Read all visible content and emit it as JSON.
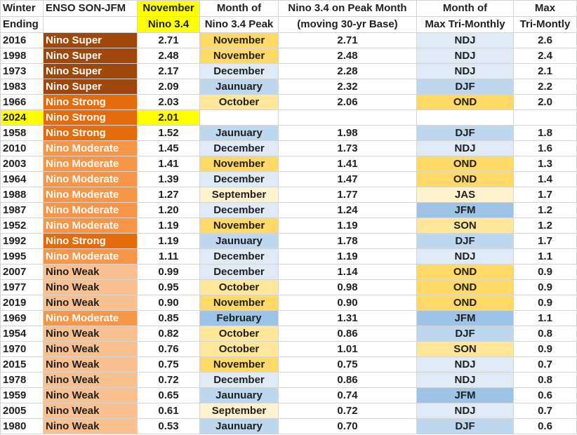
{
  "headers": [
    [
      "Winter",
      "Ending"
    ],
    [
      "ENSO SON-JFM",
      ""
    ],
    [
      "November",
      "Nino 3.4"
    ],
    [
      "Month of",
      "Nino 3.4 Peak"
    ],
    [
      "Nino 3.4 on Peak Month",
      "(moving 30-yr Base)"
    ],
    [
      "Month of",
      "Max Tri-Monthly"
    ],
    [
      "Max",
      "Tri-Montly"
    ]
  ],
  "colors": {
    "highlight": "#ffff00",
    "nino_super": "#a0480c",
    "nino_strong": "#e46c0a",
    "nino_moderate": "#f79646",
    "nino_weak": "#fac090",
    "blue_light": "#deebf7",
    "blue_mid": "#bdd7ee",
    "blue_dark": "#9dc3e6",
    "gold": "#ffd966",
    "gold_light": "#ffe699",
    "cream": "#fff2cc"
  },
  "rows": [
    {
      "year": "2016",
      "enso": "Nino Super",
      "nov": "2.71",
      "peak_month": "November",
      "peak_val": "2.71",
      "tri_month": "NDJ",
      "tri_max": "2.6"
    },
    {
      "year": "1998",
      "enso": "Nino Super",
      "nov": "2.48",
      "peak_month": "November",
      "peak_val": "2.48",
      "tri_month": "NDJ",
      "tri_max": "2.4"
    },
    {
      "year": "1973",
      "enso": "Nino Super",
      "nov": "2.17",
      "peak_month": "December",
      "peak_val": "2.28",
      "tri_month": "NDJ",
      "tri_max": "2.1"
    },
    {
      "year": "1983",
      "enso": "Nino Super",
      "nov": "2.09",
      "peak_month": "Jaunuary",
      "peak_val": "2.32",
      "tri_month": "DJF",
      "tri_max": "2.2"
    },
    {
      "year": "1966",
      "enso": "Nino Strong",
      "nov": "2.03",
      "peak_month": "October",
      "peak_val": "2.06",
      "tri_month": "OND",
      "tri_max": "2.0"
    },
    {
      "year": "2024",
      "enso": "Nino Strong",
      "nov": "2.01",
      "peak_month": "",
      "peak_val": "",
      "tri_month": "",
      "tri_max": ""
    },
    {
      "year": "1958",
      "enso": "Nino Strong",
      "nov": "1.52",
      "peak_month": "Jaunuary",
      "peak_val": "1.98",
      "tri_month": "DJF",
      "tri_max": "1.8"
    },
    {
      "year": "2010",
      "enso": "Nino Moderate",
      "nov": "1.45",
      "peak_month": "December",
      "peak_val": "1.73",
      "tri_month": "NDJ",
      "tri_max": "1.6"
    },
    {
      "year": "2003",
      "enso": "Nino Moderate",
      "nov": "1.41",
      "peak_month": "November",
      "peak_val": "1.41",
      "tri_month": "OND",
      "tri_max": "1.3"
    },
    {
      "year": "1964",
      "enso": "Nino Moderate",
      "nov": "1.39",
      "peak_month": "December",
      "peak_val": "1.47",
      "tri_month": "OND",
      "tri_max": "1.4"
    },
    {
      "year": "1988",
      "enso": "Nino Moderate",
      "nov": "1.27",
      "peak_month": "September",
      "peak_val": "1.77",
      "tri_month": "JAS",
      "tri_max": "1.7"
    },
    {
      "year": "1987",
      "enso": "Nino Moderate",
      "nov": "1.20",
      "peak_month": "December",
      "peak_val": "1.24",
      "tri_month": "JFM",
      "tri_max": "1.2"
    },
    {
      "year": "1952",
      "enso": "Nino Moderate",
      "nov": "1.19",
      "peak_month": "November",
      "peak_val": "1.19",
      "tri_month": "SON",
      "tri_max": "1.2"
    },
    {
      "year": "1992",
      "enso": "Nino Strong",
      "nov": "1.19",
      "peak_month": "Jaunuary",
      "peak_val": "1.78",
      "tri_month": "DJF",
      "tri_max": "1.7"
    },
    {
      "year": "1995",
      "enso": "Nino Moderate",
      "nov": "1.11",
      "peak_month": "December",
      "peak_val": "1.19",
      "tri_month": "NDJ",
      "tri_max": "1.1"
    },
    {
      "year": "2007",
      "enso": "Nino Weak",
      "nov": "0.99",
      "peak_month": "December",
      "peak_val": "1.14",
      "tri_month": "OND",
      "tri_max": "0.9"
    },
    {
      "year": "1977",
      "enso": "Nino Weak",
      "nov": "0.95",
      "peak_month": "October",
      "peak_val": "0.98",
      "tri_month": "OND",
      "tri_max": "0.9"
    },
    {
      "year": "2019",
      "enso": "Nino Weak",
      "nov": "0.90",
      "peak_month": "November",
      "peak_val": "0.90",
      "tri_month": "OND",
      "tri_max": "0.9"
    },
    {
      "year": "1969",
      "enso": "Nino Moderate",
      "nov": "0.85",
      "peak_month": "February",
      "peak_val": "1.31",
      "tri_month": "JFM",
      "tri_max": "1.1"
    },
    {
      "year": "1954",
      "enso": "Nino Weak",
      "nov": "0.82",
      "peak_month": "October",
      "peak_val": "0.86",
      "tri_month": "DJF",
      "tri_max": "0.8"
    },
    {
      "year": "1970",
      "enso": "Nino Weak",
      "nov": "0.76",
      "peak_month": "October",
      "peak_val": "1.01",
      "tri_month": "SON",
      "tri_max": "0.9"
    },
    {
      "year": "2015",
      "enso": "Nino Weak",
      "nov": "0.75",
      "peak_month": "November",
      "peak_val": "0.75",
      "tri_month": "NDJ",
      "tri_max": "0.7"
    },
    {
      "year": "1978",
      "enso": "Nino Weak",
      "nov": "0.72",
      "peak_month": "December",
      "peak_val": "0.86",
      "tri_month": "NDJ",
      "tri_max": "0.8"
    },
    {
      "year": "1959",
      "enso": "Nino Weak",
      "nov": "0.65",
      "peak_month": "Jaunuary",
      "peak_val": "0.74",
      "tri_month": "JFM",
      "tri_max": "0.6"
    },
    {
      "year": "2005",
      "enso": "Nino Weak",
      "nov": "0.61",
      "peak_month": "September",
      "peak_val": "0.72",
      "tri_month": "NDJ",
      "tri_max": "0.7"
    },
    {
      "year": "1980",
      "enso": "Nino Weak",
      "nov": "0.53",
      "peak_month": "Jaunuary",
      "peak_val": "0.70",
      "tri_month": "DJF",
      "tri_max": "0.6"
    }
  ]
}
